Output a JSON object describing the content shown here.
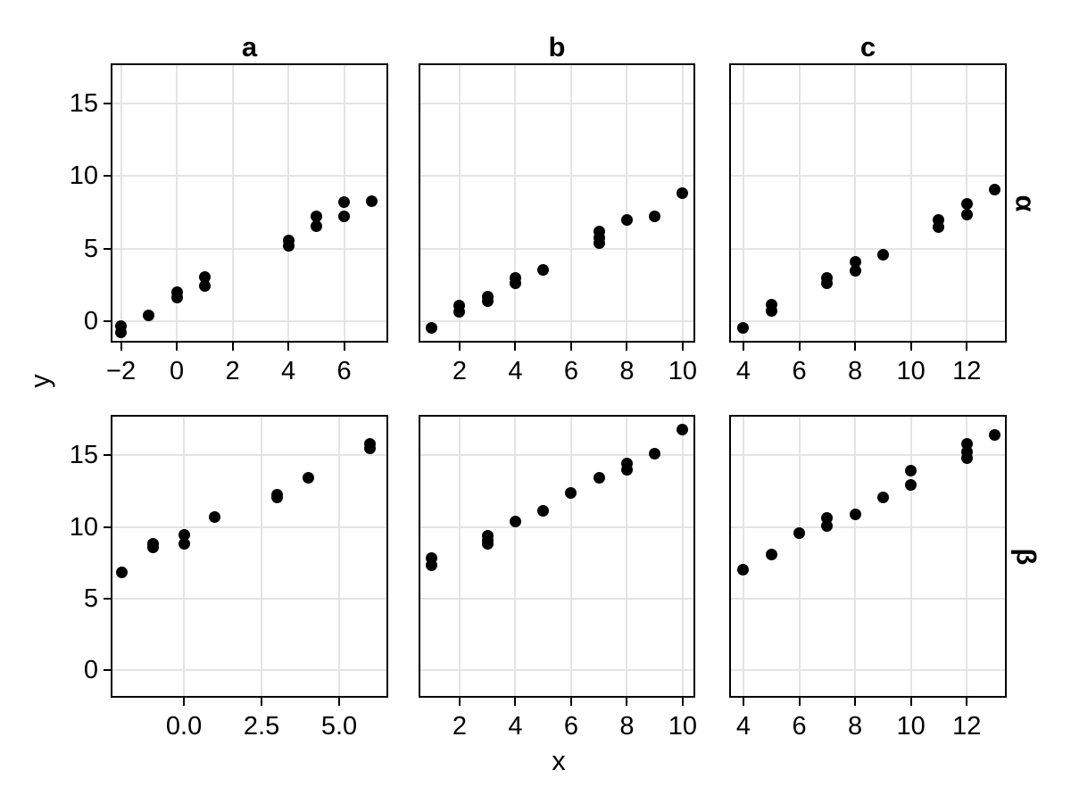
{
  "figure": {
    "x_axis_label": "x",
    "y_axis_label": "y",
    "column_titles": [
      "a",
      "b",
      "c"
    ],
    "row_titles": [
      "α",
      "β"
    ],
    "colors": {
      "point": "#000000",
      "panel_border": "#000000",
      "gridline": "#e4e4e4",
      "text": "#000000",
      "background": "#ffffff"
    }
  },
  "chart_data": {
    "type": "scatter",
    "title": "",
    "xlabel": "x",
    "ylabel": "y",
    "grid": true,
    "legend": "none",
    "point_color": "#000000",
    "y_ticks": {
      "values": [
        0,
        5,
        10,
        15
      ],
      "labels": [
        "0",
        "5",
        "10",
        "15"
      ]
    },
    "facets": [
      {
        "row": "alpha",
        "col": "a",
        "row_index": 0,
        "col_index": 0,
        "row_label": "α",
        "col_label": "a",
        "x_domain": [
          -2.37,
          7.58
        ],
        "y_domain": [
          -1.5,
          17.8
        ],
        "x_ticks": [
          -2,
          0,
          2,
          4,
          6
        ],
        "x_tick_labels": [
          "−2",
          "0",
          "2",
          "4",
          "6"
        ],
        "points": [
          [
            -2,
            -0.35
          ],
          [
            -2,
            -0.8
          ],
          [
            -1,
            0.4
          ],
          [
            0,
            2.0
          ],
          [
            0,
            1.6
          ],
          [
            1,
            3.05
          ],
          [
            1,
            2.4
          ],
          [
            4,
            5.55
          ],
          [
            4,
            5.2
          ],
          [
            5,
            7.2
          ],
          [
            5,
            6.55
          ],
          [
            6,
            8.2
          ],
          [
            6,
            7.25
          ],
          [
            7,
            8.3
          ]
        ]
      },
      {
        "row": "alpha",
        "col": "b",
        "row_index": 0,
        "col_index": 1,
        "row_label": "α",
        "col_label": "b",
        "x_domain": [
          0.53,
          10.45
        ],
        "y_domain": [
          -1.5,
          17.8
        ],
        "x_ticks": [
          2,
          4,
          6,
          8,
          10
        ],
        "x_tick_labels": [
          "2",
          "4",
          "6",
          "8",
          "10"
        ],
        "points": [
          [
            1,
            -0.5
          ],
          [
            2,
            1.05
          ],
          [
            2,
            0.65
          ],
          [
            3,
            1.65
          ],
          [
            3,
            1.35
          ],
          [
            4,
            2.95
          ],
          [
            4,
            2.6
          ],
          [
            5,
            3.55
          ],
          [
            7,
            6.2
          ],
          [
            7,
            5.75
          ],
          [
            7,
            5.35
          ],
          [
            8,
            7.0
          ],
          [
            9,
            7.25
          ],
          [
            10,
            8.8
          ]
        ]
      },
      {
        "row": "alpha",
        "col": "c",
        "row_index": 0,
        "col_index": 2,
        "row_label": "α",
        "col_label": "c",
        "x_domain": [
          3.49,
          13.43
        ],
        "y_domain": [
          -1.5,
          17.8
        ],
        "x_ticks": [
          4,
          6,
          8,
          10,
          12
        ],
        "x_tick_labels": [
          "4",
          "6",
          "8",
          "10",
          "12"
        ],
        "points": [
          [
            4,
            -0.5
          ],
          [
            5,
            1.1
          ],
          [
            5,
            0.7
          ],
          [
            7,
            3.0
          ],
          [
            7,
            2.6
          ],
          [
            8,
            4.05
          ],
          [
            8,
            3.45
          ],
          [
            9,
            4.55
          ],
          [
            11,
            6.95
          ],
          [
            11,
            6.5
          ],
          [
            12,
            8.1
          ],
          [
            12,
            7.35
          ],
          [
            13,
            9.05
          ]
        ]
      },
      {
        "row": "beta",
        "col": "a",
        "row_index": 1,
        "col_index": 0,
        "row_label": "β",
        "col_label": "a",
        "x_domain": [
          -2.36,
          6.58
        ],
        "y_domain": [
          -1.9,
          17.8
        ],
        "x_ticks": [
          0,
          2.5,
          5
        ],
        "x_tick_labels": [
          "0.0",
          "2.5",
          "5.0"
        ],
        "points": [
          [
            -2,
            6.85
          ],
          [
            -1,
            8.85
          ],
          [
            -1,
            8.55
          ],
          [
            0,
            9.45
          ],
          [
            0,
            8.85
          ],
          [
            1,
            10.7
          ],
          [
            3,
            12.25
          ],
          [
            3,
            12.05
          ],
          [
            4,
            13.4
          ],
          [
            6,
            15.8
          ],
          [
            6,
            15.5
          ]
        ]
      },
      {
        "row": "beta",
        "col": "b",
        "row_index": 1,
        "col_index": 1,
        "row_label": "β",
        "col_label": "b",
        "x_domain": [
          0.53,
          10.45
        ],
        "y_domain": [
          -1.9,
          17.8
        ],
        "x_ticks": [
          2,
          4,
          6,
          8,
          10
        ],
        "x_tick_labels": [
          "2",
          "4",
          "6",
          "8",
          "10"
        ],
        "points": [
          [
            1,
            7.8
          ],
          [
            1,
            7.35
          ],
          [
            3,
            9.35
          ],
          [
            3,
            9.05
          ],
          [
            3,
            8.8
          ],
          [
            4,
            10.35
          ],
          [
            5,
            11.1
          ],
          [
            6,
            12.35
          ],
          [
            7,
            13.4
          ],
          [
            8,
            14.4
          ],
          [
            8,
            14.0
          ],
          [
            9,
            15.1
          ],
          [
            10,
            16.8
          ]
        ]
      },
      {
        "row": "beta",
        "col": "c",
        "row_index": 1,
        "col_index": 2,
        "row_label": "β",
        "col_label": "c",
        "x_domain": [
          3.49,
          13.43
        ],
        "y_domain": [
          -1.9,
          17.8
        ],
        "x_ticks": [
          4,
          6,
          8,
          10,
          12
        ],
        "x_tick_labels": [
          "4",
          "6",
          "8",
          "10",
          "12"
        ],
        "points": [
          [
            4,
            7.0
          ],
          [
            5,
            8.1
          ],
          [
            6,
            9.55
          ],
          [
            7,
            10.6
          ],
          [
            7,
            10.05
          ],
          [
            8,
            10.9
          ],
          [
            9,
            12.05
          ],
          [
            10,
            13.9
          ],
          [
            10,
            12.9
          ],
          [
            12,
            15.75
          ],
          [
            12,
            15.25
          ],
          [
            12,
            14.8
          ],
          [
            13,
            16.4
          ]
        ]
      }
    ]
  }
}
